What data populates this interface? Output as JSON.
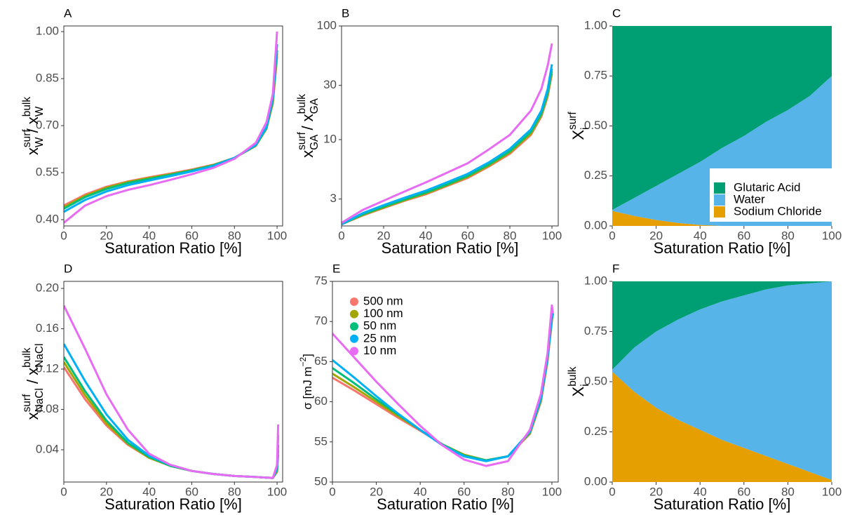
{
  "chart_data": [
    {
      "type": "line",
      "title": "A",
      "xlabel": "Saturation Ratio [%]",
      "ylabel": [
        {
          "base": "x",
          "sup": "surf",
          "sub": "W"
        },
        {
          "base": " / "
        },
        {
          "base": "x",
          "sup": "bulk",
          "sub": "W"
        }
      ],
      "panel_border": true,
      "xlim": [
        0,
        102.6
      ],
      "ylim": [
        0.38,
        1.018
      ],
      "xticks": [
        0,
        20,
        40,
        60,
        80,
        100
      ],
      "yticks": [
        {
          "value": 0.4,
          "label": "0.40"
        },
        {
          "value": 0.55,
          "label": "0.55"
        },
        {
          "value": 0.7,
          "label": "0.70"
        },
        {
          "value": 0.85,
          "label": "0.85"
        },
        {
          "value": 1,
          "label": "1.00"
        }
      ],
      "x": [
        0,
        10,
        20,
        30,
        40,
        50,
        60,
        70,
        80,
        90,
        95,
        98,
        100
      ],
      "series": [
        {
          "name": "500 nm",
          "color": "#F8766D",
          "values": [
            0.445,
            0.48,
            0.505,
            0.522,
            0.535,
            0.547,
            0.56,
            0.575,
            0.597,
            0.635,
            0.69,
            0.77,
            0.92
          ]
        },
        {
          "name": "100 nm",
          "color": "#A3A500",
          "values": [
            0.44,
            0.476,
            0.502,
            0.52,
            0.533,
            0.545,
            0.558,
            0.574,
            0.597,
            0.636,
            0.69,
            0.775,
            0.93
          ]
        },
        {
          "name": "50 nm",
          "color": "#00BF7D",
          "values": [
            0.435,
            0.472,
            0.498,
            0.517,
            0.53,
            0.543,
            0.557,
            0.573,
            0.597,
            0.637,
            0.692,
            0.78,
            0.94
          ]
        },
        {
          "name": "25 nm",
          "color": "#00B0F6",
          "values": [
            0.425,
            0.463,
            0.49,
            0.51,
            0.525,
            0.539,
            0.554,
            0.571,
            0.597,
            0.638,
            0.695,
            0.79,
            0.96
          ]
        },
        {
          "name": "10 nm",
          "color": "#E76BF3",
          "values": [
            0.39,
            0.445,
            0.475,
            0.495,
            0.51,
            0.527,
            0.545,
            0.565,
            0.594,
            0.645,
            0.71,
            0.8,
            1.0
          ]
        }
      ]
    },
    {
      "type": "line",
      "title": "B",
      "xlabel": "Saturation Ratio [%]",
      "ylabel": [
        {
          "base": "x",
          "sup": "surf",
          "sub": "GA"
        },
        {
          "base": " / "
        },
        {
          "base": "x",
          "sup": "bulk",
          "sub": "GA"
        }
      ],
      "panel_border": true,
      "log_scale": true,
      "xlim": [
        0,
        103
      ],
      "ylim": [
        1.74,
        100
      ],
      "xticks": [
        0,
        20,
        40,
        60,
        80,
        100
      ],
      "yticks": [
        3,
        10,
        30,
        100
      ],
      "x": [
        0,
        10,
        20,
        30,
        40,
        50,
        60,
        70,
        80,
        90,
        95,
        98,
        100
      ],
      "series": [
        {
          "name": "500 nm",
          "color": "#F8766D",
          "values": [
            1.8,
            2.15,
            2.5,
            2.9,
            3.3,
            3.9,
            4.6,
            5.8,
            7.5,
            11,
            16,
            24,
            38
          ]
        },
        {
          "name": "100 nm",
          "color": "#A3A500",
          "values": [
            1.8,
            2.17,
            2.53,
            2.93,
            3.36,
            3.95,
            4.7,
            5.9,
            7.7,
            11.3,
            16.5,
            25,
            40
          ]
        },
        {
          "name": "50 nm",
          "color": "#00BF7D",
          "values": [
            1.8,
            2.2,
            2.57,
            2.98,
            3.42,
            4.02,
            4.8,
            6.05,
            7.9,
            11.7,
            17,
            26,
            42
          ]
        },
        {
          "name": "25 nm",
          "color": "#00B0F6",
          "values": [
            1.8,
            2.25,
            2.65,
            3.08,
            3.55,
            4.2,
            5.0,
            6.3,
            8.3,
            12.3,
            18,
            28,
            46
          ]
        },
        {
          "name": "10 nm",
          "color": "#E76BF3",
          "values": [
            1.85,
            2.4,
            2.9,
            3.5,
            4.2,
            5.1,
            6.2,
            8.2,
            11,
            18,
            28,
            45,
            70
          ]
        }
      ]
    },
    {
      "type": "area",
      "title": "C",
      "xlabel": "Saturation Ratio [%]",
      "ylabel": [
        {
          "base": "X",
          "sup": "surf",
          "sub": "i"
        }
      ],
      "legend": "bottom-right",
      "xlim": [
        0,
        100
      ],
      "ylim": [
        0,
        1
      ],
      "xticks": [
        0,
        20,
        40,
        60,
        80,
        100
      ],
      "yticks": [
        {
          "value": 0,
          "label": "0.00"
        },
        {
          "value": 0.25,
          "label": "0.25"
        },
        {
          "value": 0.5,
          "label": "0.50"
        },
        {
          "value": 0.75,
          "label": "0.75"
        },
        {
          "value": 1,
          "label": "1.00"
        }
      ],
      "x": [
        0,
        10,
        20,
        30,
        40,
        50,
        60,
        70,
        80,
        90,
        100
      ],
      "series": [
        {
          "name": "Sodium Chloride",
          "color": "#E69F00",
          "values": [
            0.075,
            0.05,
            0.03,
            0.015,
            0.005,
            0,
            0,
            0,
            0,
            0,
            0
          ]
        },
        {
          "name": "Water",
          "color": "#56B4E9",
          "values": [
            0.005,
            0.09,
            0.17,
            0.245,
            0.315,
            0.39,
            0.45,
            0.52,
            0.58,
            0.65,
            0.75
          ]
        },
        {
          "name": "Glutaric Acid",
          "color": "#009E73",
          "values": [
            0.92,
            0.86,
            0.8,
            0.74,
            0.68,
            0.61,
            0.55,
            0.48,
            0.42,
            0.35,
            0.25
          ]
        }
      ]
    },
    {
      "type": "line",
      "title": "D",
      "xlabel": "Saturation Ratio [%]",
      "ylabel": [
        {
          "base": "x",
          "sup": "surf",
          "sub": "NaCl"
        },
        {
          "base": " / "
        },
        {
          "base": "x",
          "sup": "bulk",
          "sub": "NaCl"
        }
      ],
      "panel_border": true,
      "xlim": [
        0,
        102.6
      ],
      "ylim": [
        0.008,
        0.207
      ],
      "xticks": [
        0,
        20,
        40,
        60,
        80,
        100
      ],
      "yticks": [
        {
          "value": 0.04,
          "label": "0.04"
        },
        {
          "value": 0.08,
          "label": "0.08"
        },
        {
          "value": 0.12,
          "label": "0.12"
        },
        {
          "value": 0.16,
          "label": "0.16"
        },
        {
          "value": 0.2,
          "label": "0.20"
        }
      ],
      "x": [
        0,
        10,
        20,
        30,
        40,
        50,
        60,
        70,
        80,
        90,
        98,
        100,
        100.5
      ],
      "series": [
        {
          "name": "500 nm",
          "color": "#F8766D",
          "values": [
            0.122,
            0.09,
            0.064,
            0.045,
            0.032,
            0.024,
            0.019,
            0.016,
            0.014,
            0.013,
            0.012,
            0.018,
            0.035
          ]
        },
        {
          "name": "100 nm",
          "color": "#A3A500",
          "values": [
            0.127,
            0.094,
            0.066,
            0.046,
            0.032,
            0.024,
            0.019,
            0.016,
            0.014,
            0.013,
            0.012,
            0.019,
            0.04
          ]
        },
        {
          "name": "50 nm",
          "color": "#00BF7D",
          "values": [
            0.132,
            0.098,
            0.069,
            0.047,
            0.033,
            0.024,
            0.019,
            0.016,
            0.014,
            0.013,
            0.012,
            0.02,
            0.045
          ]
        },
        {
          "name": "25 nm",
          "color": "#00B0F6",
          "values": [
            0.145,
            0.108,
            0.075,
            0.05,
            0.034,
            0.025,
            0.019,
            0.016,
            0.014,
            0.013,
            0.012,
            0.022,
            0.055
          ]
        },
        {
          "name": "10 nm",
          "color": "#E76BF3",
          "values": [
            0.183,
            0.14,
            0.095,
            0.06,
            0.036,
            0.025,
            0.019,
            0.016,
            0.014,
            0.013,
            0.012,
            0.025,
            0.065
          ]
        }
      ]
    },
    {
      "type": "line",
      "title": "E",
      "xlabel": "Saturation Ratio [%]",
      "ylabel": [
        {
          "base": "σ [mJ m"
        },
        {
          "base": "",
          "sup": "−2"
        },
        {
          "base": "]"
        }
      ],
      "panel_border": true,
      "legend": "top-left",
      "xlim": [
        0,
        102.9
      ],
      "ylim": [
        50,
        75
      ],
      "xticks": [
        0,
        20,
        40,
        60,
        80,
        100
      ],
      "yticks": [
        50,
        55,
        60,
        65,
        70,
        75
      ],
      "x": [
        0,
        10,
        20,
        30,
        40,
        50,
        60,
        70,
        80,
        90,
        95,
        98,
        100,
        100.5
      ],
      "series": [
        {
          "name": "500 nm",
          "color": "#F8766D",
          "values": [
            63,
            61.4,
            59.7,
            58,
            56.4,
            54.7,
            53.4,
            52.7,
            53.2,
            56,
            60,
            65,
            70,
            71
          ]
        },
        {
          "name": "100 nm",
          "color": "#A3A500",
          "values": [
            63.5,
            61.8,
            60,
            58.2,
            56.5,
            54.7,
            53.4,
            52.7,
            53.2,
            56.1,
            60.2,
            65.2,
            70.2,
            71
          ]
        },
        {
          "name": "50 nm",
          "color": "#00BF7D",
          "values": [
            64.2,
            62.3,
            60.3,
            58.4,
            56.5,
            54.7,
            53.3,
            52.7,
            53.2,
            56.2,
            60.3,
            65.3,
            70.3,
            71
          ]
        },
        {
          "name": "25 nm",
          "color": "#00B0F6",
          "values": [
            65.2,
            63,
            60.7,
            58.5,
            56.5,
            54.6,
            53.2,
            52.6,
            53.2,
            56.3,
            60.5,
            65.5,
            70.5,
            71
          ]
        },
        {
          "name": "10 nm",
          "color": "#E76BF3",
          "values": [
            68.5,
            65.5,
            62.5,
            59.7,
            57,
            54.6,
            52.8,
            52,
            52.6,
            56.5,
            61,
            66,
            72,
            71
          ]
        }
      ]
    },
    {
      "type": "area",
      "title": "F",
      "xlabel": "Saturation Ratio [%]",
      "ylabel": [
        {
          "base": "X",
          "sup": "bulk",
          "sub": "i"
        }
      ],
      "xlim": [
        0,
        100
      ],
      "ylim": [
        0,
        1
      ],
      "xticks": [
        0,
        20,
        40,
        60,
        80,
        100
      ],
      "yticks": [
        {
          "value": 0,
          "label": "0.00"
        },
        {
          "value": 0.25,
          "label": "0.25"
        },
        {
          "value": 0.5,
          "label": "0.50"
        },
        {
          "value": 0.75,
          "label": "0.75"
        },
        {
          "value": 1,
          "label": "1.00"
        }
      ],
      "x": [
        0,
        10,
        20,
        30,
        40,
        50,
        60,
        70,
        80,
        90,
        100
      ],
      "series": [
        {
          "name": "Sodium Chloride",
          "color": "#E69F00",
          "values": [
            0.55,
            0.45,
            0.37,
            0.31,
            0.26,
            0.21,
            0.17,
            0.13,
            0.09,
            0.05,
            0.01
          ]
        },
        {
          "name": "Water",
          "color": "#56B4E9",
          "values": [
            0.01,
            0.22,
            0.38,
            0.5,
            0.6,
            0.69,
            0.76,
            0.83,
            0.89,
            0.94,
            0.99
          ]
        },
        {
          "name": "Glutaric Acid",
          "color": "#009E73",
          "values": [
            0.44,
            0.33,
            0.25,
            0.19,
            0.14,
            0.1,
            0.07,
            0.04,
            0.02,
            0.01,
            0
          ]
        }
      ]
    }
  ]
}
